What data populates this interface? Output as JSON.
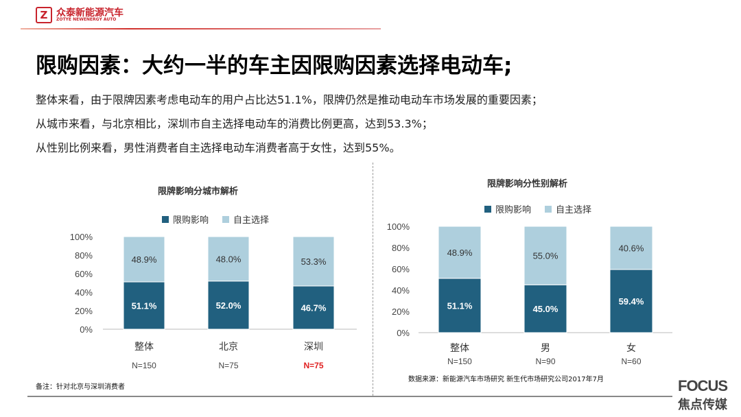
{
  "header": {
    "logo_letter": "Z",
    "brand_cn": "众泰新能源汽车",
    "brand_en": "ZOTYE NEWENERGY AUTO"
  },
  "title": "限购因素：大约一半的车主因限购因素选择电动车;",
  "bullets": [
    "整体来看，由于限牌因素考虑电动车的用户占比达51.1%，限牌仍然是推动电动车市场发展的重要因素；",
    "从城市来看，与北京相比，深圳市自主选择电动车的消费比例更高，达到53.3%；",
    "从性别比例来看，男性消费者自主选择电动车消费者高于女性，达到55%。"
  ],
  "colors": {
    "dark": "#21607f",
    "light": "#aecfdd",
    "highlight": "#e02020"
  },
  "chart_data": [
    {
      "type": "bar",
      "stacked": true,
      "title": "限牌影响分城市解析",
      "categories": [
        "整体",
        "北京",
        "深圳"
      ],
      "sample_sizes": [
        "N=150",
        "N=75",
        "N=75"
      ],
      "highlight_sample": 2,
      "series": [
        {
          "name": "限购影响",
          "values": [
            51.1,
            52.0,
            46.7
          ]
        },
        {
          "name": "自主选择",
          "values": [
            48.9,
            48.0,
            53.3
          ]
        }
      ],
      "yticks": [
        "0%",
        "20%",
        "40%",
        "60%",
        "80%",
        "100%"
      ],
      "ylim": [
        0,
        100
      ],
      "legend": "top"
    },
    {
      "type": "bar",
      "stacked": true,
      "title": "限牌影响分性别解析",
      "categories": [
        "整体",
        "男",
        "女"
      ],
      "sample_sizes": [
        "N=150",
        "N=90",
        "N=60"
      ],
      "series": [
        {
          "name": "限购影响",
          "values": [
            51.1,
            45.0,
            59.4
          ]
        },
        {
          "name": "自主选择",
          "values": [
            48.9,
            55.0,
            40.6
          ]
        }
      ],
      "yticks": [
        "0%",
        "20%",
        "40%",
        "60%",
        "80%",
        "100%"
      ],
      "ylim": [
        0,
        100
      ],
      "legend": "top"
    }
  ],
  "footer": {
    "note": "备注：针对北京与深圳消费者",
    "source": "数据来源：新能源汽车市场研究    新生代市场研究公司2017年7月",
    "focus_en": "FOCUS",
    "focus_cn": "焦点传媒"
  }
}
